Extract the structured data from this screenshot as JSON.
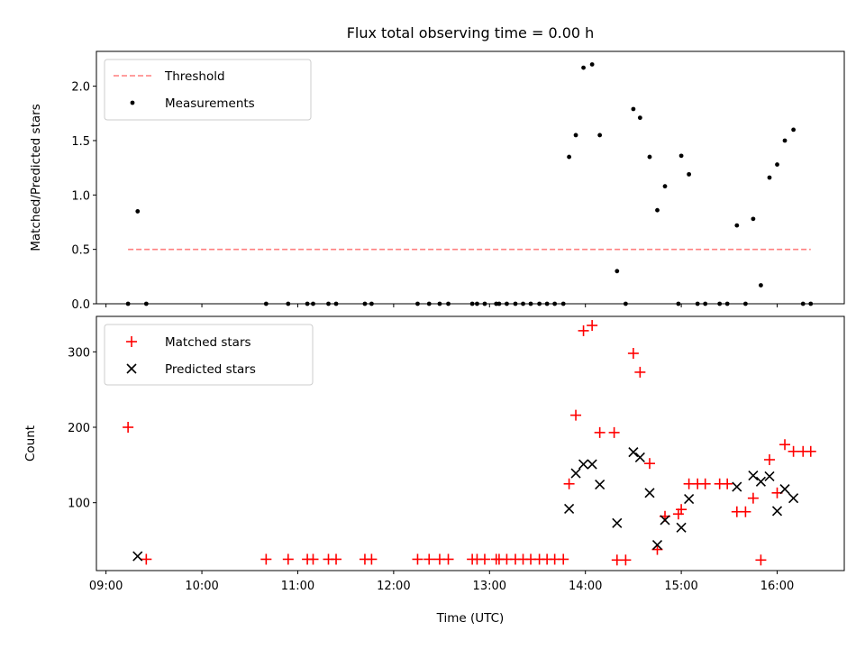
{
  "chart_data": [
    {
      "type": "scatter",
      "title": "Flux total observing time = 0.00 h",
      "xlabel": "",
      "ylabel": "Matched/Predicted stars",
      "xlim": [
        8.9,
        16.7
      ],
      "ylim": [
        0,
        2.32
      ],
      "yticks": [
        0.0,
        0.5,
        1.0,
        1.5,
        2.0
      ],
      "yticklabels": [
        "0.0",
        "0.5",
        "1.0",
        "1.5",
        "2.0"
      ],
      "legend": {
        "position": "top-left",
        "entries": [
          "Threshold",
          "Measurements"
        ]
      },
      "threshold": {
        "name": "Threshold",
        "value": 0.5,
        "x_start": 9.23,
        "x_end": 16.35,
        "color": "#ff7f7f"
      },
      "series": [
        {
          "name": "Measurements",
          "color": "#000000",
          "points": [
            [
              9.23,
              0.0
            ],
            [
              9.33,
              0.85
            ],
            [
              9.42,
              0.0
            ],
            [
              10.67,
              0.0
            ],
            [
              10.9,
              0.0
            ],
            [
              11.1,
              0.0
            ],
            [
              11.16,
              0.0
            ],
            [
              11.32,
              0.0
            ],
            [
              11.4,
              0.0
            ],
            [
              11.7,
              0.0
            ],
            [
              11.77,
              0.0
            ],
            [
              12.25,
              0.0
            ],
            [
              12.37,
              0.0
            ],
            [
              12.48,
              0.0
            ],
            [
              12.57,
              0.0
            ],
            [
              12.82,
              0.0
            ],
            [
              12.87,
              0.0
            ],
            [
              12.95,
              0.0
            ],
            [
              13.07,
              0.0
            ],
            [
              13.1,
              0.0
            ],
            [
              13.18,
              0.0
            ],
            [
              13.27,
              0.0
            ],
            [
              13.35,
              0.0
            ],
            [
              13.43,
              0.0
            ],
            [
              13.52,
              0.0
            ],
            [
              13.6,
              0.0
            ],
            [
              13.68,
              0.0
            ],
            [
              13.77,
              0.0
            ],
            [
              13.83,
              1.35
            ],
            [
              13.9,
              1.55
            ],
            [
              13.98,
              2.17
            ],
            [
              14.07,
              2.2
            ],
            [
              14.15,
              1.55
            ],
            [
              14.33,
              0.3
            ],
            [
              14.42,
              0.0
            ],
            [
              14.5,
              1.79
            ],
            [
              14.57,
              1.71
            ],
            [
              14.67,
              1.35
            ],
            [
              14.75,
              0.86
            ],
            [
              14.83,
              1.08
            ],
            [
              14.97,
              0.0
            ],
            [
              15.0,
              1.36
            ],
            [
              15.08,
              1.19
            ],
            [
              15.17,
              0.0
            ],
            [
              15.25,
              0.0
            ],
            [
              15.4,
              0.0
            ],
            [
              15.48,
              0.0
            ],
            [
              15.58,
              0.72
            ],
            [
              15.67,
              0.0
            ],
            [
              15.75,
              0.78
            ],
            [
              15.83,
              0.17
            ],
            [
              15.92,
              1.16
            ],
            [
              16.0,
              1.28
            ],
            [
              16.08,
              1.5
            ],
            [
              16.17,
              1.6
            ],
            [
              16.27,
              0.0
            ],
            [
              16.35,
              0.0
            ]
          ]
        }
      ]
    },
    {
      "type": "scatter",
      "title": "",
      "xlabel": "Time (UTC)",
      "ylabel": "Count",
      "xlim": [
        8.9,
        16.7
      ],
      "ylim": [
        10,
        347
      ],
      "yticks": [
        100,
        200,
        300
      ],
      "yticklabels": [
        "100",
        "200",
        "300"
      ],
      "xticks": [
        9,
        10,
        11,
        12,
        13,
        14,
        15,
        16
      ],
      "xticklabels": [
        "09:00",
        "10:00",
        "11:00",
        "12:00",
        "13:00",
        "14:00",
        "15:00",
        "16:00"
      ],
      "legend": {
        "position": "top-left",
        "entries": [
          "Matched stars",
          "Predicted stars"
        ]
      },
      "series": [
        {
          "name": "Matched stars",
          "marker": "+",
          "color": "#ff0000",
          "points": [
            [
              9.23,
              200
            ],
            [
              9.42,
              25
            ],
            [
              10.67,
              25
            ],
            [
              10.9,
              25
            ],
            [
              11.1,
              25
            ],
            [
              11.16,
              25
            ],
            [
              11.32,
              25
            ],
            [
              11.4,
              25
            ],
            [
              11.7,
              25
            ],
            [
              11.77,
              25
            ],
            [
              12.25,
              25
            ],
            [
              12.37,
              25
            ],
            [
              12.48,
              25
            ],
            [
              12.57,
              25
            ],
            [
              12.82,
              25
            ],
            [
              12.87,
              25
            ],
            [
              12.95,
              25
            ],
            [
              13.07,
              25
            ],
            [
              13.1,
              25
            ],
            [
              13.18,
              25
            ],
            [
              13.27,
              25
            ],
            [
              13.35,
              25
            ],
            [
              13.43,
              25
            ],
            [
              13.52,
              25
            ],
            [
              13.6,
              25
            ],
            [
              13.68,
              25
            ],
            [
              13.77,
              25
            ],
            [
              13.83,
              125
            ],
            [
              13.9,
              216
            ],
            [
              13.98,
              328
            ],
            [
              14.07,
              335
            ],
            [
              14.15,
              193
            ],
            [
              14.3,
              193
            ],
            [
              14.33,
              24
            ],
            [
              14.42,
              24
            ],
            [
              14.5,
              298
            ],
            [
              14.57,
              273
            ],
            [
              14.67,
              152
            ],
            [
              14.75,
              38
            ],
            [
              14.83,
              82
            ],
            [
              14.97,
              85
            ],
            [
              15.0,
              91
            ],
            [
              15.08,
              125
            ],
            [
              15.17,
              125
            ],
            [
              15.25,
              125
            ],
            [
              15.4,
              125
            ],
            [
              15.48,
              125
            ],
            [
              15.58,
              88
            ],
            [
              15.67,
              88
            ],
            [
              15.75,
              106
            ],
            [
              15.83,
              24
            ],
            [
              15.92,
              157
            ],
            [
              16.0,
              113
            ],
            [
              16.08,
              177
            ],
            [
              16.17,
              168
            ],
            [
              16.27,
              168
            ],
            [
              16.35,
              168
            ]
          ]
        },
        {
          "name": "Predicted stars",
          "marker": "x",
          "color": "#000000",
          "points": [
            [
              9.33,
              29
            ],
            [
              13.83,
              92
            ],
            [
              13.9,
              139
            ],
            [
              13.98,
              151
            ],
            [
              14.07,
              151
            ],
            [
              14.15,
              124
            ],
            [
              14.33,
              73
            ],
            [
              14.5,
              167
            ],
            [
              14.57,
              160
            ],
            [
              14.67,
              113
            ],
            [
              14.75,
              44
            ],
            [
              14.83,
              77
            ],
            [
              15.0,
              67
            ],
            [
              15.08,
              105
            ],
            [
              15.58,
              121
            ],
            [
              15.75,
              136
            ],
            [
              15.83,
              128
            ],
            [
              15.92,
              135
            ],
            [
              16.0,
              89
            ],
            [
              16.08,
              118
            ],
            [
              16.17,
              106
            ]
          ]
        }
      ]
    }
  ]
}
